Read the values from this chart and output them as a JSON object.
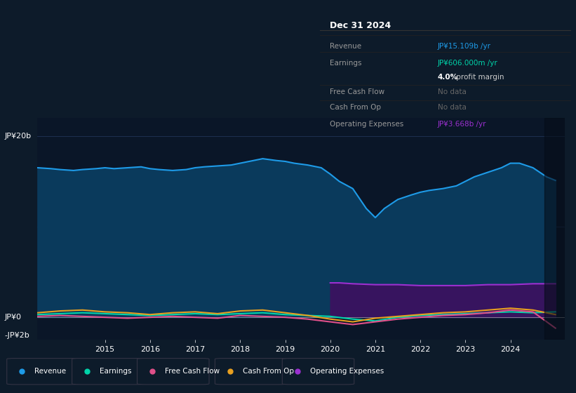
{
  "bg_color": "#0d1b2a",
  "chart_area_color": "#0a1628",
  "title": "Dec 31 2024",
  "ylabel_top": "JP¥20b",
  "ylabel_zero": "JP¥0",
  "ylabel_neg": "-JP¥2b",
  "ylim": [
    -2.5,
    22
  ],
  "xlim_start": 2013.5,
  "xlim_end": 2025.2,
  "xticks": [
    2015,
    2016,
    2017,
    2018,
    2019,
    2020,
    2021,
    2022,
    2023,
    2024
  ],
  "grid_color": "#1e3050",
  "zero_line_color": "#aaaaaa",
  "legend_items": [
    {
      "label": "Revenue",
      "color": "#1e9be8"
    },
    {
      "label": "Earnings",
      "color": "#00d4aa"
    },
    {
      "label": "Free Cash Flow",
      "color": "#e0508a"
    },
    {
      "label": "Cash From Op",
      "color": "#e8a020"
    },
    {
      "label": "Operating Expenses",
      "color": "#9b30d0"
    }
  ],
  "revenue_x": [
    2013.5,
    2013.8,
    2014.0,
    2014.3,
    2014.5,
    2014.8,
    2015.0,
    2015.2,
    2015.5,
    2015.8,
    2016.0,
    2016.2,
    2016.5,
    2016.8,
    2017.0,
    2017.2,
    2017.5,
    2017.8,
    2018.0,
    2018.2,
    2018.5,
    2018.8,
    2019.0,
    2019.2,
    2019.5,
    2019.8,
    2020.0,
    2020.2,
    2020.5,
    2020.8,
    2021.0,
    2021.2,
    2021.5,
    2021.8,
    2022.0,
    2022.2,
    2022.5,
    2022.8,
    2023.0,
    2023.2,
    2023.5,
    2023.8,
    2024.0,
    2024.2,
    2024.5,
    2024.8,
    2025.0
  ],
  "revenue_y": [
    16.5,
    16.4,
    16.3,
    16.2,
    16.3,
    16.4,
    16.5,
    16.4,
    16.5,
    16.6,
    16.4,
    16.3,
    16.2,
    16.3,
    16.5,
    16.6,
    16.7,
    16.8,
    17.0,
    17.2,
    17.5,
    17.3,
    17.2,
    17.0,
    16.8,
    16.5,
    15.8,
    15.0,
    14.2,
    12.0,
    11.0,
    12.0,
    13.0,
    13.5,
    13.8,
    14.0,
    14.2,
    14.5,
    15.0,
    15.5,
    16.0,
    16.5,
    17.0,
    17.0,
    16.5,
    15.5,
    15.1
  ],
  "earnings_x": [
    2013.5,
    2014.0,
    2014.5,
    2015.0,
    2015.5,
    2016.0,
    2016.5,
    2017.0,
    2017.5,
    2018.0,
    2018.5,
    2019.0,
    2019.5,
    2020.0,
    2020.5,
    2021.0,
    2021.5,
    2022.0,
    2022.5,
    2023.0,
    2023.5,
    2024.0,
    2024.5,
    2025.0
  ],
  "earnings_y": [
    0.3,
    0.4,
    0.5,
    0.4,
    0.3,
    0.2,
    0.3,
    0.4,
    0.3,
    0.4,
    0.5,
    0.3,
    0.2,
    0.1,
    -0.2,
    -0.4,
    0.0,
    0.2,
    0.3,
    0.4,
    0.5,
    0.6,
    0.5,
    0.6
  ],
  "fcf_x": [
    2013.5,
    2014.0,
    2014.5,
    2015.0,
    2015.5,
    2016.0,
    2016.5,
    2017.0,
    2017.5,
    2018.0,
    2018.5,
    2019.0,
    2019.5,
    2020.0,
    2020.5,
    2021.0,
    2021.5,
    2022.0,
    2022.5,
    2023.0,
    2023.5,
    2024.0,
    2024.5,
    2025.0
  ],
  "fcf_y": [
    0.1,
    0.2,
    0.1,
    0.0,
    -0.1,
    0.0,
    0.1,
    0.0,
    -0.1,
    0.2,
    0.1,
    0.0,
    -0.2,
    -0.5,
    -0.8,
    -0.5,
    -0.2,
    0.0,
    0.2,
    0.3,
    0.5,
    0.8,
    0.6,
    -1.2
  ],
  "cashfromop_x": [
    2013.5,
    2014.0,
    2014.5,
    2015.0,
    2015.5,
    2016.0,
    2016.5,
    2017.0,
    2017.5,
    2018.0,
    2018.5,
    2019.0,
    2019.5,
    2020.0,
    2020.5,
    2021.0,
    2021.5,
    2022.0,
    2022.5,
    2023.0,
    2023.5,
    2024.0,
    2024.5,
    2025.0
  ],
  "cashfromop_y": [
    0.5,
    0.7,
    0.8,
    0.6,
    0.5,
    0.3,
    0.5,
    0.6,
    0.4,
    0.7,
    0.8,
    0.5,
    0.2,
    -0.2,
    -0.5,
    -0.1,
    0.1,
    0.3,
    0.5,
    0.6,
    0.8,
    1.0,
    0.8,
    0.3
  ],
  "opex_x": [
    2020.0,
    2020.2,
    2020.5,
    2021.0,
    2021.5,
    2022.0,
    2022.5,
    2023.0,
    2023.5,
    2024.0,
    2024.5,
    2025.0
  ],
  "opex_y": [
    3.8,
    3.8,
    3.7,
    3.6,
    3.6,
    3.5,
    3.5,
    3.5,
    3.6,
    3.6,
    3.7,
    3.7
  ],
  "infobox_rows": [
    {
      "label": "Revenue",
      "value": "JP¥15.109b /yr",
      "value_color": "#1e9be8",
      "suffix": "",
      "is_margin": false
    },
    {
      "label": "Earnings",
      "value": "JP¥606.000m /yr",
      "value_color": "#00d4aa",
      "suffix": "",
      "is_margin": false
    },
    {
      "label": "",
      "value": "4.0%",
      "value_color": "#ffffff",
      "suffix": " profit margin",
      "is_margin": true
    },
    {
      "label": "Free Cash Flow",
      "value": "No data",
      "value_color": "#666666",
      "suffix": "",
      "is_margin": false
    },
    {
      "label": "Cash From Op",
      "value": "No data",
      "value_color": "#666666",
      "suffix": "",
      "is_margin": false
    },
    {
      "label": "Operating Expenses",
      "value": "JP¥3.668b /yr",
      "value_color": "#9b30d0",
      "suffix": "",
      "is_margin": false
    }
  ]
}
